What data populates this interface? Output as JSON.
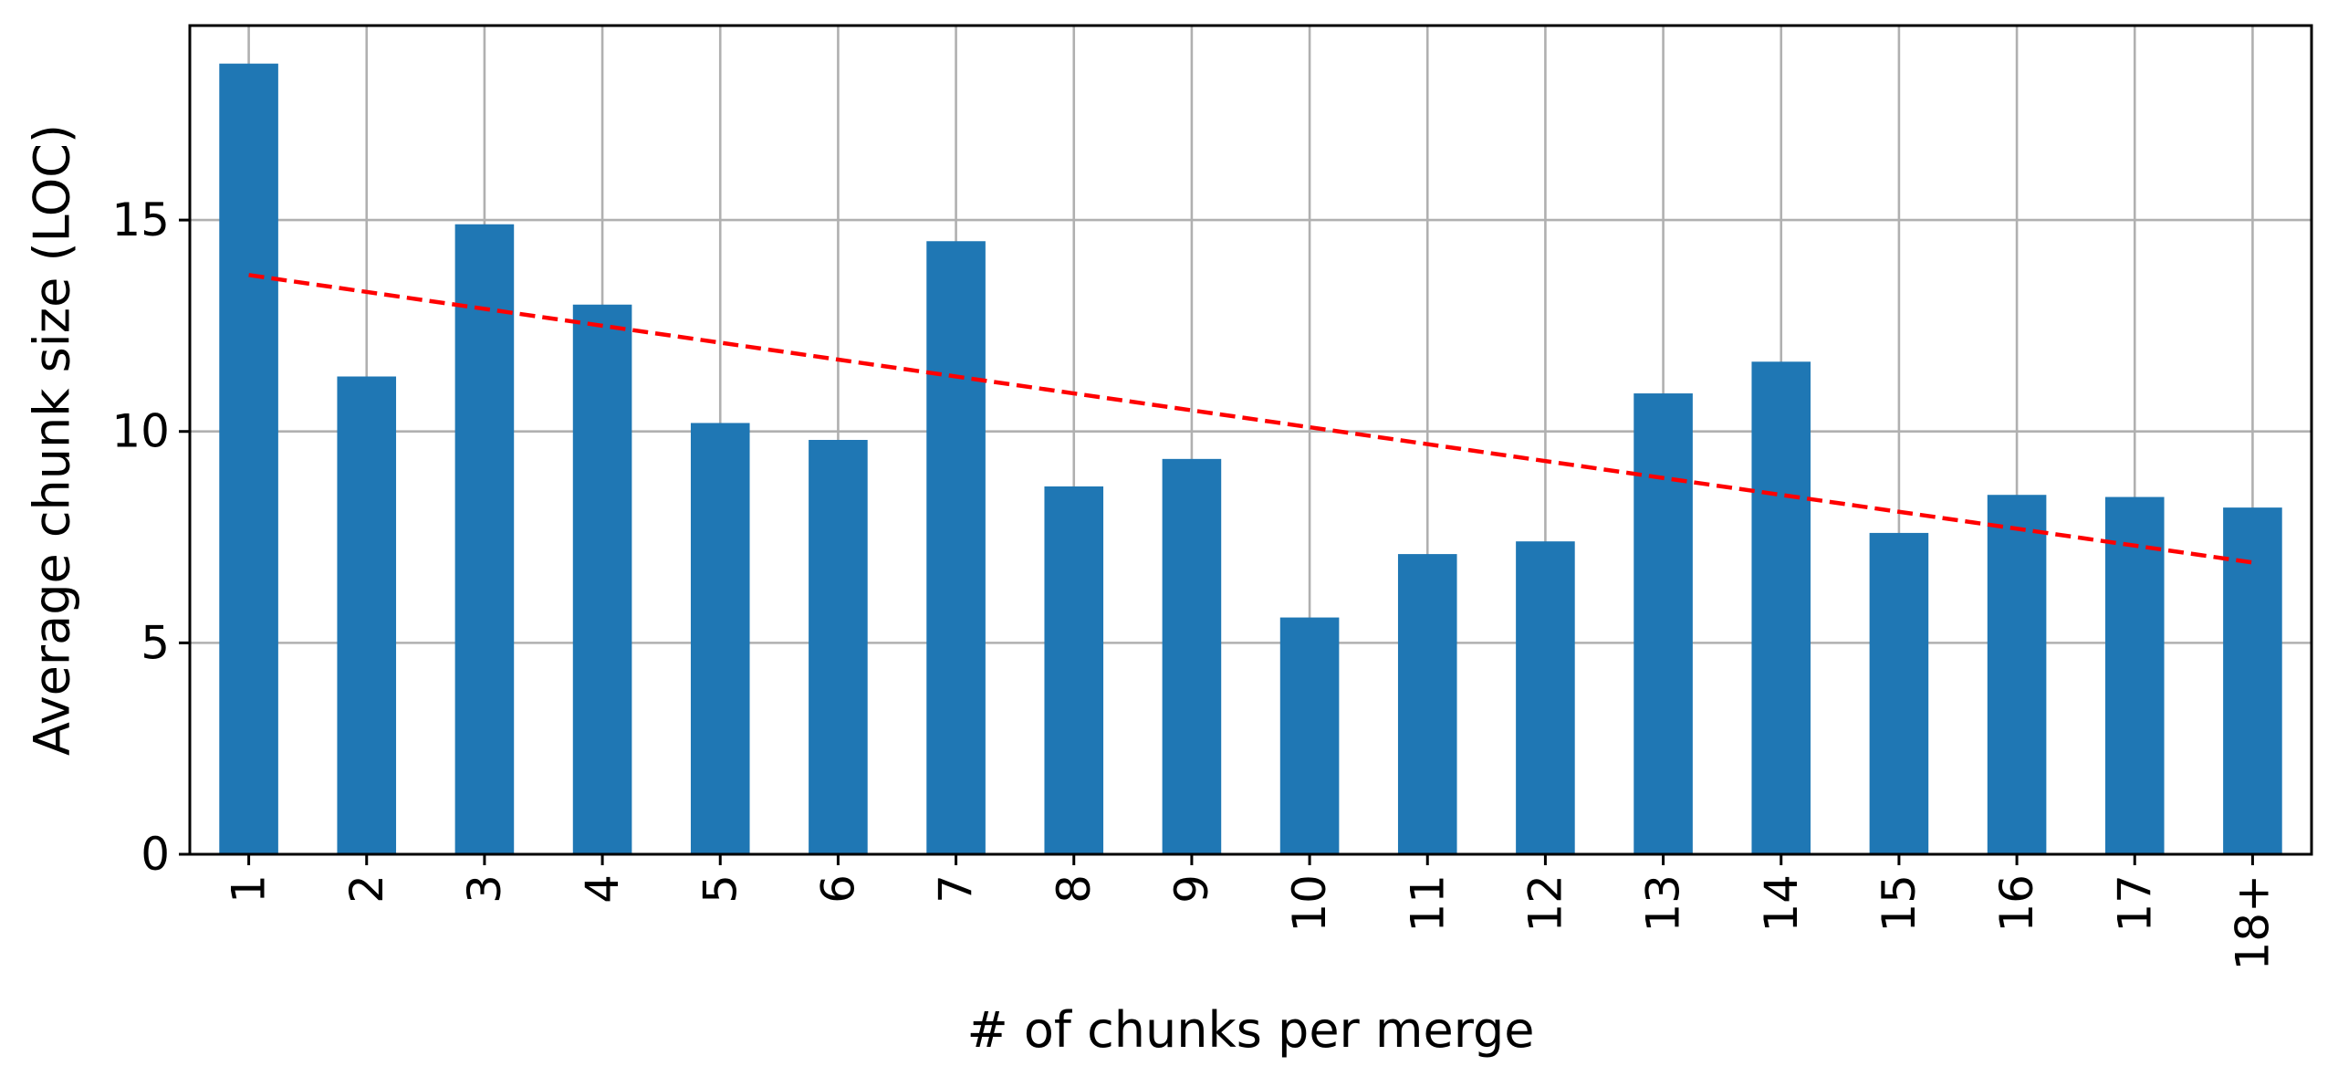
{
  "chart_data": {
    "type": "bar",
    "categories": [
      "1",
      "2",
      "3",
      "4",
      "5",
      "6",
      "7",
      "8",
      "9",
      "10",
      "11",
      "12",
      "13",
      "14",
      "15",
      "16",
      "17",
      "18+"
    ],
    "series": [
      {
        "values": [
          18.7,
          11.3,
          14.9,
          13.0,
          10.2,
          9.8,
          14.5,
          8.7,
          9.35,
          5.6,
          7.1,
          7.4,
          10.9,
          11.65,
          7.6,
          8.5,
          8.45,
          8.2
        ],
        "color": "#1f77b4"
      }
    ],
    "trendline": {
      "style": "dashed",
      "color": "#ff0000",
      "start": {
        "category": "1",
        "value": 13.7
      },
      "end": {
        "category": "18+",
        "value": 6.9
      }
    },
    "title": "",
    "xlabel": "# of chunks per merge",
    "ylabel": "Average chunk size (LOC)",
    "ylim": [
      0,
      19.6
    ],
    "yticks": [
      "0",
      "5",
      "10",
      "15"
    ],
    "grid": true,
    "legend": "none"
  }
}
